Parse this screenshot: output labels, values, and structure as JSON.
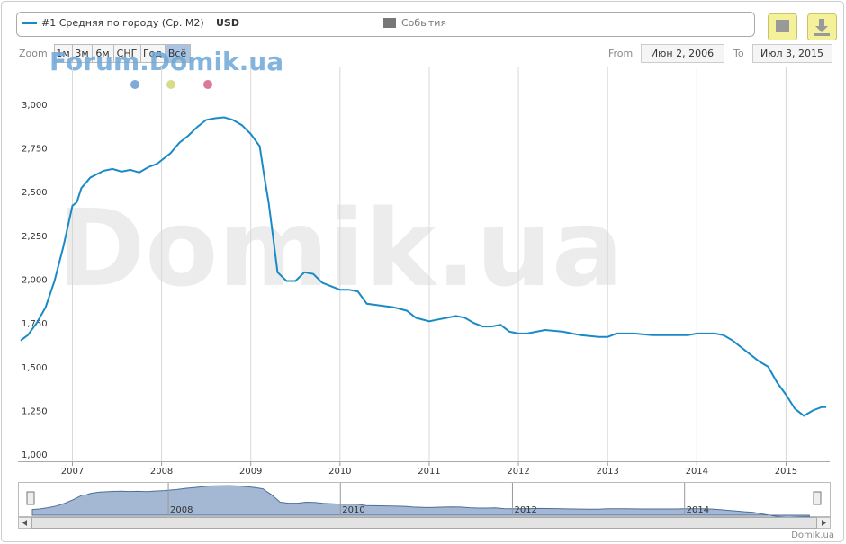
{
  "chart_data": {
    "type": "line",
    "currency": "USD",
    "events_label": "События",
    "zoom_label": "Zoom",
    "range_buttons": [
      "1м",
      "3м",
      "6м",
      "СНГ",
      "Год",
      "Всё"
    ],
    "from_label": "From",
    "from_date": "Июн 2, 2006",
    "to_label": "To",
    "to_date": "Июл 3, 2015",
    "forum_watermark": "Forum.Domik.ua",
    "watermark": "Domik.ua",
    "credit": "Domik.ua",
    "x": [
      2006.42,
      2006.5,
      2006.6,
      2006.7,
      2006.8,
      2006.9,
      2007.0,
      2007.05,
      2007.1,
      2007.2,
      2007.35,
      2007.45,
      2007.55,
      2007.65,
      2007.75,
      2007.85,
      2007.95,
      2008.1,
      2008.2,
      2008.3,
      2008.4,
      2008.5,
      2008.6,
      2008.7,
      2008.8,
      2008.9,
      2009.0,
      2009.1,
      2009.15,
      2009.2,
      2009.25,
      2009.3,
      2009.4,
      2009.5,
      2009.6,
      2009.7,
      2009.8,
      2009.9,
      2010.0,
      2010.1,
      2010.2,
      2010.3,
      2010.45,
      2010.6,
      2010.75,
      2010.85,
      2011.0,
      2011.1,
      2011.2,
      2011.3,
      2011.4,
      2011.5,
      2011.6,
      2011.7,
      2011.8,
      2011.9,
      2012.0,
      2012.1,
      2012.2,
      2012.3,
      2012.5,
      2012.7,
      2012.9,
      2013.0,
      2013.1,
      2013.3,
      2013.5,
      2013.7,
      2013.9,
      2014.0,
      2014.2,
      2014.3,
      2014.4,
      2014.5,
      2014.6,
      2014.7,
      2014.8,
      2014.9,
      2015.0,
      2015.1,
      2015.2,
      2015.3,
      2015.4,
      2015.45
    ],
    "series": [
      {
        "name": "#1 Средняя по городу (Ср. М2)",
        "color": "#1a8ac6",
        "values": [
          1660,
          1690,
          1760,
          1850,
          2000,
          2200,
          2430,
          2450,
          2530,
          2590,
          2630,
          2640,
          2625,
          2635,
          2620,
          2650,
          2670,
          2730,
          2790,
          2830,
          2880,
          2920,
          2930,
          2935,
          2920,
          2890,
          2840,
          2770,
          2600,
          2450,
          2250,
          2050,
          2000,
          2000,
          2050,
          2040,
          1990,
          1970,
          1950,
          1950,
          1940,
          1870,
          1860,
          1850,
          1830,
          1790,
          1770,
          1780,
          1790,
          1800,
          1790,
          1760,
          1740,
          1740,
          1750,
          1710,
          1700,
          1700,
          1710,
          1720,
          1710,
          1690,
          1680,
          1680,
          1700,
          1700,
          1690,
          1690,
          1690,
          1700,
          1700,
          1690,
          1660,
          1620,
          1580,
          1540,
          1510,
          1420,
          1350,
          1270,
          1230,
          1260,
          1280,
          1280
        ]
      }
    ],
    "xlim": [
      2006.39,
      2015.49
    ],
    "xticks": [
      2007,
      2008,
      2009,
      2010,
      2011,
      2012,
      2013,
      2014,
      2015
    ],
    "ylim": [
      970,
      3220
    ],
    "yticks": [
      {
        "value": 1000,
        "label": "1,000"
      },
      {
        "value": 1250,
        "label": "1,250"
      },
      {
        "value": 1500,
        "label": "1,500"
      },
      {
        "value": 1750,
        "label": "1,750"
      },
      {
        "value": 2000,
        "label": "2,000"
      },
      {
        "value": 2250,
        "label": "2,250"
      },
      {
        "value": 2500,
        "label": "2,500"
      },
      {
        "value": 2750,
        "label": "2,750"
      },
      {
        "value": 3000,
        "label": "3,000"
      }
    ],
    "grid": true,
    "navigator_xticks": [
      2008,
      2010,
      2012,
      2014
    ]
  }
}
